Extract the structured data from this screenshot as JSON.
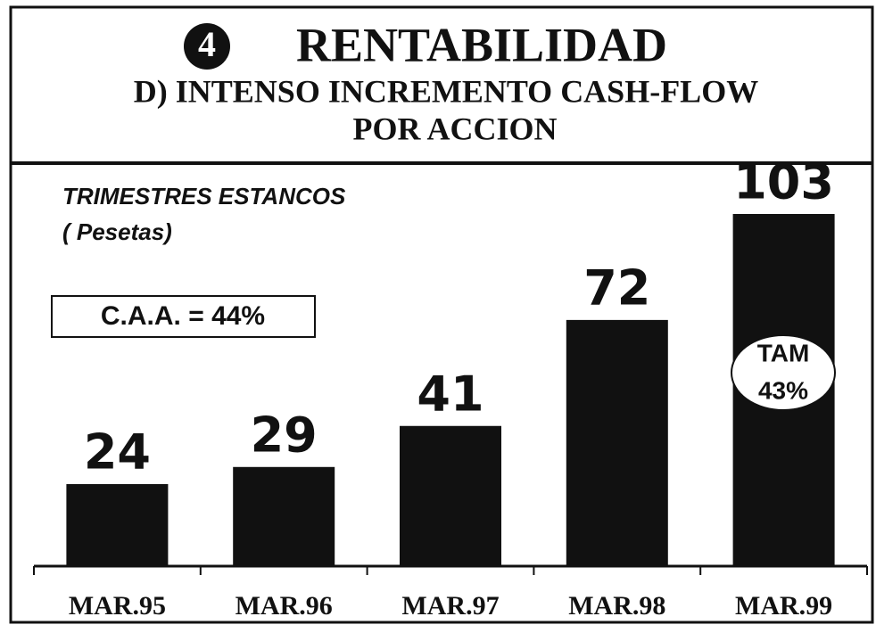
{
  "chart_data": {
    "type": "bar",
    "section_number": "4",
    "title": "RENTABILIDAD",
    "subtitle": [
      "D)  INTENSO INCREMENTO CASH-FLOW",
      "POR ACCION"
    ],
    "annotations": [
      "TRIMESTRES ESTANCOS",
      "( Pesetas)",
      "C.A.A. = 44%",
      "TAM",
      "43%"
    ],
    "categories": [
      "MAR.95",
      "MAR.96",
      "MAR.97",
      "MAR.98",
      "MAR.99"
    ],
    "values": [
      24,
      29,
      41,
      72,
      103
    ],
    "color": "#111111"
  }
}
